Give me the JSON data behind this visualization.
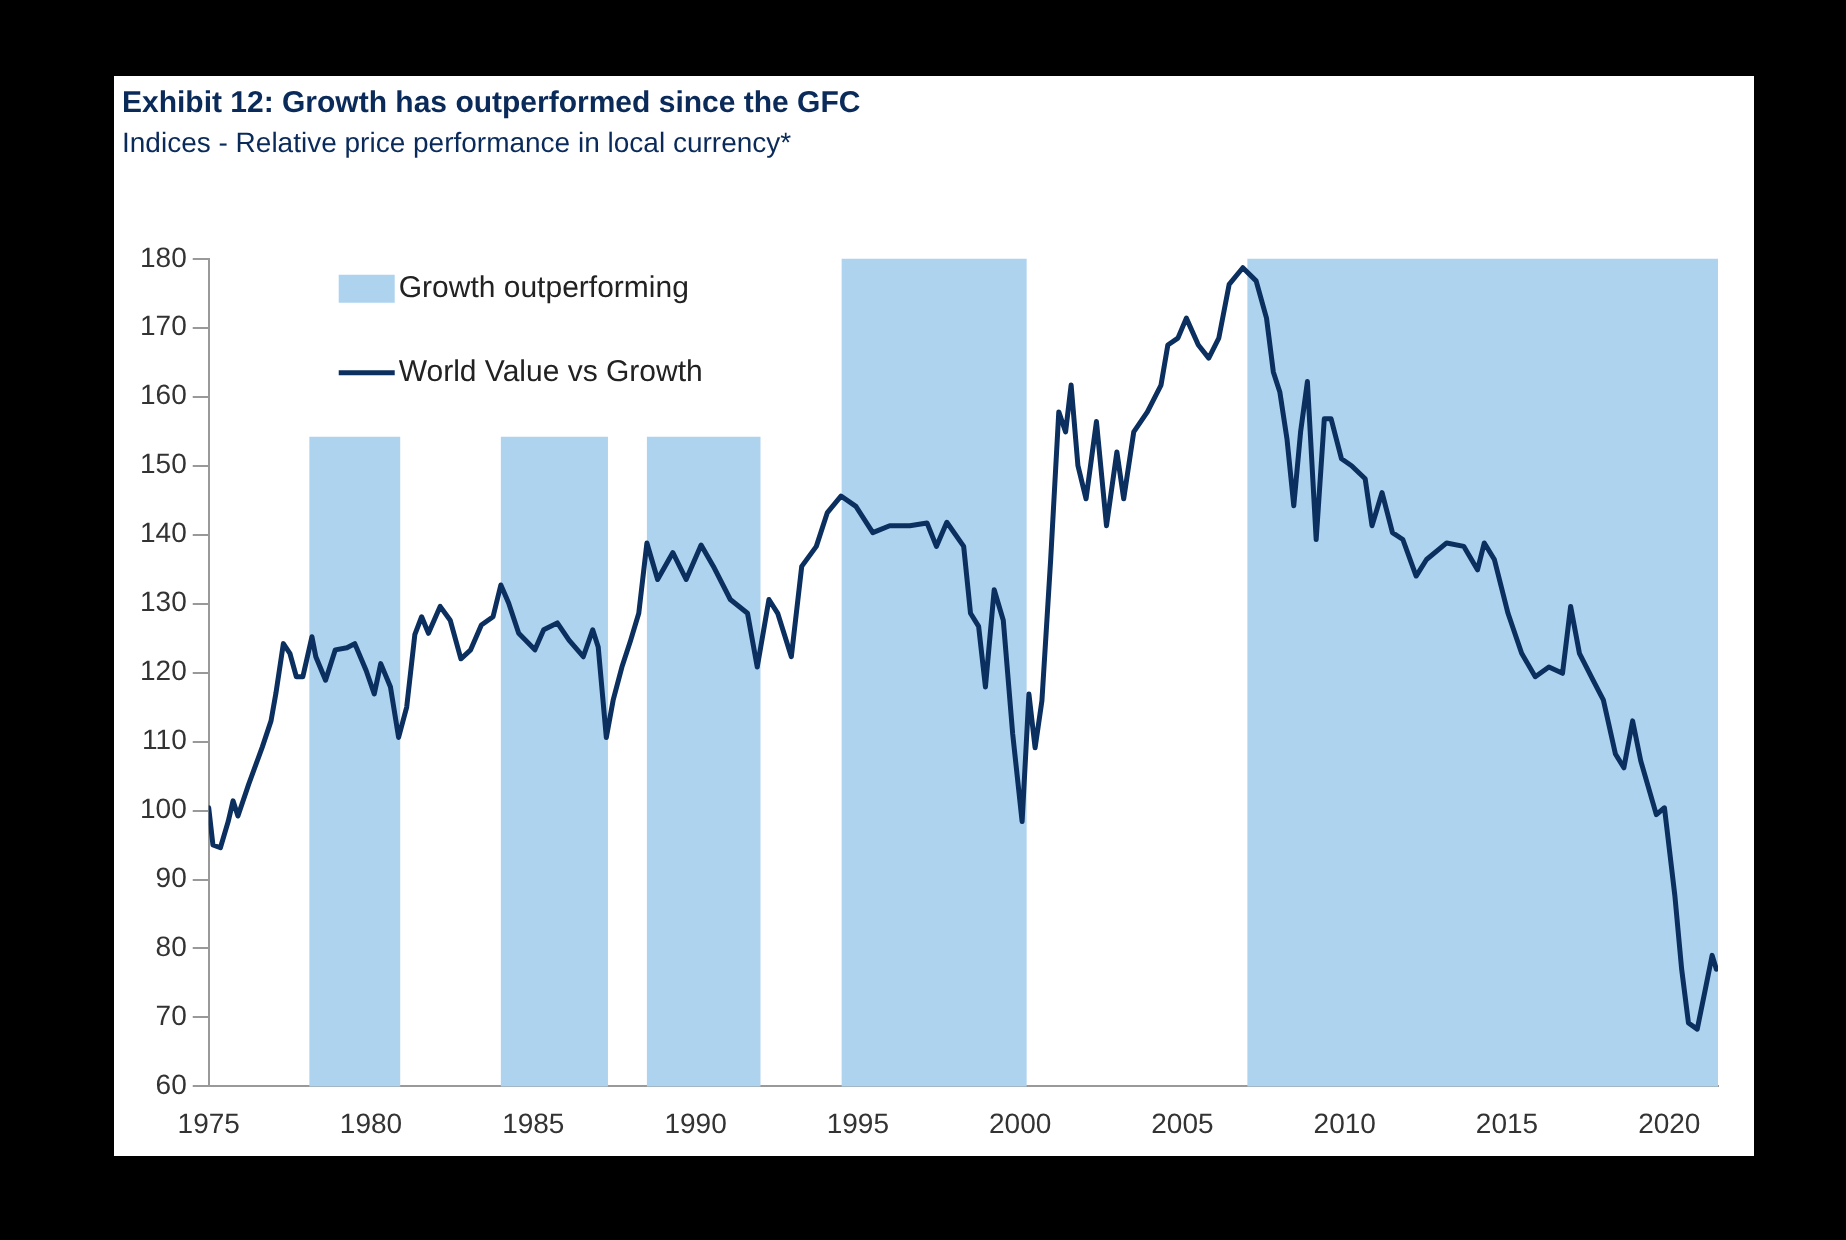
{
  "chart_data": {
    "type": "line",
    "title": "Exhibit 12: Growth has outperformed since the GFC",
    "subtitle": "Indices - Relative price performance in local currency*",
    "xlim": [
      1975,
      2021.5
    ],
    "xticks": [
      1975,
      1980,
      1985,
      1990,
      1995,
      2000,
      2005,
      2010,
      2015,
      2020
    ],
    "ylim": [
      60,
      180
    ],
    "yticks": [
      60,
      70,
      80,
      90,
      100,
      110,
      120,
      130,
      140,
      150,
      160,
      170,
      180
    ],
    "grid": false,
    "legend": "top left",
    "marker": "none",
    "line_style": "solid",
    "bands": [
      {
        "axis": "x",
        "from": 1978.1,
        "to": 1980.9,
        "label": "Growth outperforming",
        "color": "#aed3ef"
      },
      {
        "axis": "x",
        "from": 1984.0,
        "to": 1987.3,
        "color": "#aed3ef"
      },
      {
        "axis": "x",
        "from": 1988.5,
        "to": 1992.0,
        "color": "#aed3ef"
      },
      {
        "axis": "x",
        "from": 1994.5,
        "to": 2000.2,
        "color": "#aed3ef"
      },
      {
        "axis": "x",
        "from": 2007.0,
        "to": 2021.5,
        "color": "#aed3ef"
      }
    ],
    "series": [
      {
        "name": "World Value vs Growth",
        "color": "#0b2f5e",
        "x": [
          1975.0,
          1975.13,
          1975.36,
          1975.6,
          1975.75,
          1975.9,
          1976.23,
          1976.65,
          1976.92,
          1977.07,
          1977.3,
          1977.5,
          1977.7,
          1977.9,
          1978.18,
          1978.3,
          1978.6,
          1978.9,
          1979.26,
          1979.5,
          1979.85,
          1980.1,
          1980.3,
          1980.6,
          1980.85,
          1981.1,
          1981.35,
          1981.56,
          1981.77,
          1982.13,
          1982.44,
          1982.77,
          1983.07,
          1983.4,
          1983.76,
          1984.0,
          1984.24,
          1984.55,
          1985.05,
          1985.32,
          1985.74,
          1986.1,
          1986.54,
          1986.83,
          1987.0,
          1987.25,
          1987.46,
          1987.73,
          1988.0,
          1988.25,
          1988.5,
          1988.83,
          1989.3,
          1989.71,
          1990.17,
          1990.55,
          1991.07,
          1991.6,
          1991.9,
          1992.26,
          1992.53,
          1992.95,
          1993.27,
          1993.72,
          1994.06,
          1994.48,
          1994.94,
          1995.46,
          1995.98,
          1996.6,
          1997.13,
          1997.42,
          1997.74,
          1998.26,
          1998.47,
          1998.72,
          1998.93,
          1999.2,
          1999.48,
          1999.77,
          2000.06,
          2000.27,
          2000.46,
          2000.67,
          2000.94,
          2001.19,
          2001.4,
          2001.57,
          2001.78,
          2002.03,
          2002.35,
          2002.66,
          2002.98,
          2003.19,
          2003.5,
          2003.92,
          2004.34,
          2004.55,
          2004.86,
          2005.12,
          2005.49,
          2005.81,
          2006.12,
          2006.44,
          2006.86,
          2007.27,
          2007.59,
          2007.8,
          2008.0,
          2008.22,
          2008.43,
          2008.64,
          2008.85,
          2009.12,
          2009.37,
          2009.58,
          2009.9,
          2010.21,
          2010.63,
          2010.84,
          2011.15,
          2011.47,
          2011.79,
          2012.2,
          2012.52,
          2013.14,
          2013.67,
          2014.09,
          2014.3,
          2014.61,
          2015.03,
          2015.45,
          2015.87,
          2016.29,
          2016.71,
          2016.96,
          2017.23,
          2017.65,
          2017.97,
          2018.34,
          2018.6,
          2018.87,
          2019.12,
          2019.6,
          2019.85,
          2020.17,
          2020.38,
          2020.59,
          2020.86,
          2021.11,
          2021.32,
          2021.45
        ],
        "values": [
          100.4,
          95,
          94.6,
          98.4,
          101.4,
          99.2,
          103.8,
          109.2,
          113,
          117,
          124.2,
          122.8,
          119.4,
          119.4,
          125.2,
          122.3,
          118.9,
          123.3,
          123.6,
          124.2,
          120.3,
          116.9,
          121.3,
          117.9,
          110.6,
          115,
          125.5,
          128.1,
          125.7,
          129.6,
          127.6,
          122,
          123.3,
          126.9,
          128.1,
          132.7,
          130.1,
          125.7,
          123.3,
          126.2,
          127.2,
          124.7,
          122.3,
          126.2,
          123.7,
          110.6,
          116,
          120.8,
          124.7,
          128.6,
          138.8,
          133.5,
          137.4,
          133.5,
          138.5,
          135.4,
          130.6,
          128.6,
          120.8,
          130.6,
          128.6,
          122.3,
          135.4,
          138.3,
          143.2,
          145.6,
          144.1,
          140.3,
          141.3,
          141.3,
          141.7,
          138.3,
          141.8,
          138.3,
          128.6,
          126.7,
          117.9,
          132,
          127.6,
          111.1,
          98.4,
          116.9,
          109.1,
          115.9,
          136.4,
          157.8,
          154.9,
          161.7,
          150,
          145.2,
          156.4,
          141.3,
          152,
          145.2,
          154.9,
          157.8,
          161.7,
          167.5,
          168.5,
          171.4,
          167.5,
          165.6,
          168.5,
          176.3,
          178.7,
          176.8,
          171.4,
          163.6,
          160.7,
          153.9,
          144.2,
          154.9,
          162.2,
          139.3,
          156.8,
          156.8,
          151,
          150,
          148.1,
          141.3,
          146.1,
          140.3,
          139.3,
          134,
          136.4,
          138.8,
          138.3,
          134.9,
          138.8,
          136.4,
          128.6,
          122.8,
          119.4,
          120.8,
          119.9,
          129.6,
          122.8,
          118.9,
          116,
          108.2,
          106.2,
          113,
          107.2,
          99.4,
          100.4,
          87.7,
          77,
          69.2,
          68.3,
          74.1,
          79,
          77
        ]
      }
    ]
  }
}
